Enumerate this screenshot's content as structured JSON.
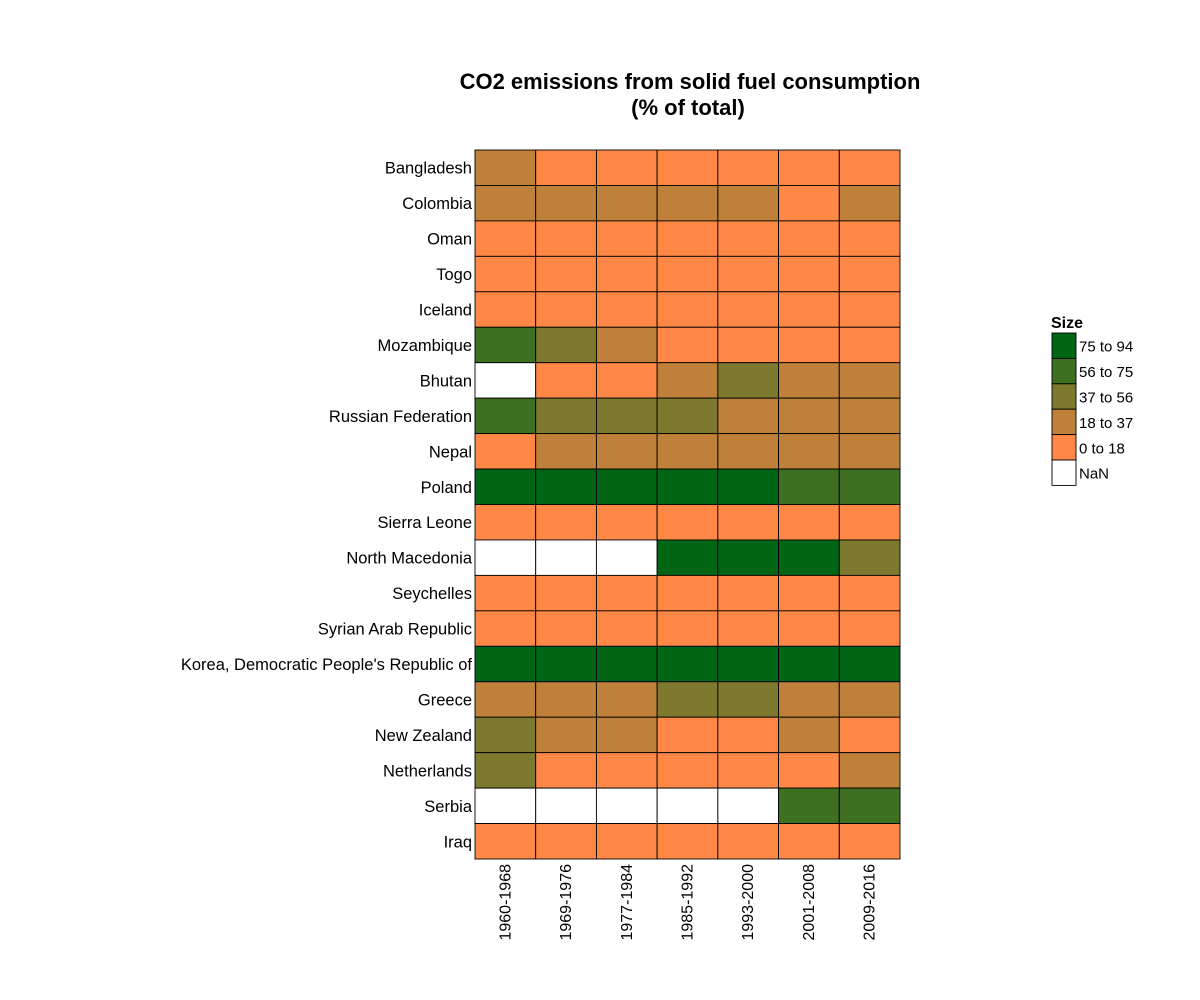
{
  "chart_data": {
    "type": "heatmap",
    "title": [
      "CO2 emissions from solid fuel consumption",
      "(% of total)"
    ],
    "columns": [
      "1960-1968",
      "1969-1976",
      "1977-1984",
      "1985-1992",
      "1993-2000",
      "2001-2008",
      "2009-2016"
    ],
    "rows": [
      "Bangladesh",
      "Colombia",
      "Oman",
      "Togo",
      "Iceland",
      "Mozambique",
      "Bhutan",
      "Russian Federation",
      "Nepal",
      "Poland",
      "Sierra Leone",
      "North Macedonia",
      "Seychelles",
      "Syrian Arab Republic",
      "Korea, Democratic People's Republic of",
      "Greece",
      "New Zealand",
      "Netherlands",
      "Serbia",
      "Iraq"
    ],
    "bins": [
      {
        "label": "75 to 94",
        "color": "#006614"
      },
      {
        "label": "56 to 75",
        "color": "#3D7021"
      },
      {
        "label": "37 to 56",
        "color": "#7D7A2F"
      },
      {
        "label": "18 to 37",
        "color": "#BF8039"
      },
      {
        "label": "0 to 18",
        "color": "#FF8847"
      },
      {
        "label": "NaN",
        "color": "#FFFFFF"
      }
    ],
    "cells": [
      [
        "18 to 37",
        "0 to 18",
        "0 to 18",
        "0 to 18",
        "0 to 18",
        "0 to 18",
        "0 to 18"
      ],
      [
        "18 to 37",
        "18 to 37",
        "18 to 37",
        "18 to 37",
        "18 to 37",
        "0 to 18",
        "18 to 37"
      ],
      [
        "0 to 18",
        "0 to 18",
        "0 to 18",
        "0 to 18",
        "0 to 18",
        "0 to 18",
        "0 to 18"
      ],
      [
        "0 to 18",
        "0 to 18",
        "0 to 18",
        "0 to 18",
        "0 to 18",
        "0 to 18",
        "0 to 18"
      ],
      [
        "0 to 18",
        "0 to 18",
        "0 to 18",
        "0 to 18",
        "0 to 18",
        "0 to 18",
        "0 to 18"
      ],
      [
        "56 to 75",
        "37 to 56",
        "18 to 37",
        "0 to 18",
        "0 to 18",
        "0 to 18",
        "0 to 18"
      ],
      [
        "NaN",
        "0 to 18",
        "0 to 18",
        "18 to 37",
        "37 to 56",
        "18 to 37",
        "18 to 37"
      ],
      [
        "56 to 75",
        "37 to 56",
        "37 to 56",
        "37 to 56",
        "18 to 37",
        "18 to 37",
        "18 to 37"
      ],
      [
        "0 to 18",
        "18 to 37",
        "18 to 37",
        "18 to 37",
        "18 to 37",
        "18 to 37",
        "18 to 37"
      ],
      [
        "75 to 94",
        "75 to 94",
        "75 to 94",
        "75 to 94",
        "75 to 94",
        "56 to 75",
        "56 to 75"
      ],
      [
        "0 to 18",
        "0 to 18",
        "0 to 18",
        "0 to 18",
        "0 to 18",
        "0 to 18",
        "0 to 18"
      ],
      [
        "NaN",
        "NaN",
        "NaN",
        "75 to 94",
        "75 to 94",
        "75 to 94",
        "37 to 56"
      ],
      [
        "0 to 18",
        "0 to 18",
        "0 to 18",
        "0 to 18",
        "0 to 18",
        "0 to 18",
        "0 to 18"
      ],
      [
        "0 to 18",
        "0 to 18",
        "0 to 18",
        "0 to 18",
        "0 to 18",
        "0 to 18",
        "0 to 18"
      ],
      [
        "75 to 94",
        "75 to 94",
        "75 to 94",
        "75 to 94",
        "75 to 94",
        "75 to 94",
        "75 to 94"
      ],
      [
        "18 to 37",
        "18 to 37",
        "18 to 37",
        "37 to 56",
        "37 to 56",
        "18 to 37",
        "18 to 37"
      ],
      [
        "37 to 56",
        "18 to 37",
        "18 to 37",
        "0 to 18",
        "0 to 18",
        "18 to 37",
        "0 to 18"
      ],
      [
        "37 to 56",
        "0 to 18",
        "0 to 18",
        "0 to 18",
        "0 to 18",
        "0 to 18",
        "18 to 37"
      ],
      [
        "NaN",
        "NaN",
        "NaN",
        "NaN",
        "NaN",
        "56 to 75",
        "56 to 75"
      ],
      [
        "0 to 18",
        "0 to 18",
        "0 to 18",
        "0 to 18",
        "0 to 18",
        "0 to 18",
        "0 to 18"
      ]
    ],
    "legend": {
      "title": "Size",
      "placement": "right"
    },
    "grid": false
  }
}
